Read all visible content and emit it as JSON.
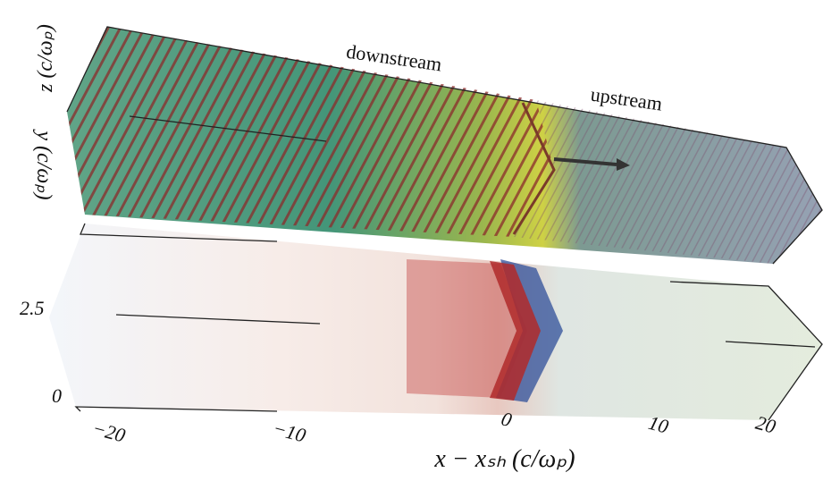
{
  "labels": {
    "downstream": "downstream",
    "upstream": "upstream"
  },
  "axes": {
    "z": {
      "label": "z (c/ωₚ)"
    },
    "y": {
      "label": "y (c/ωₚ)"
    },
    "lower": {
      "ticks": [
        "2.5",
        "0"
      ]
    },
    "x": {
      "label": "x − xₛₕ (c/ωₚ)",
      "ticks": [
        "−20",
        "−10",
        "0",
        "10",
        "20"
      ]
    }
  }
}
